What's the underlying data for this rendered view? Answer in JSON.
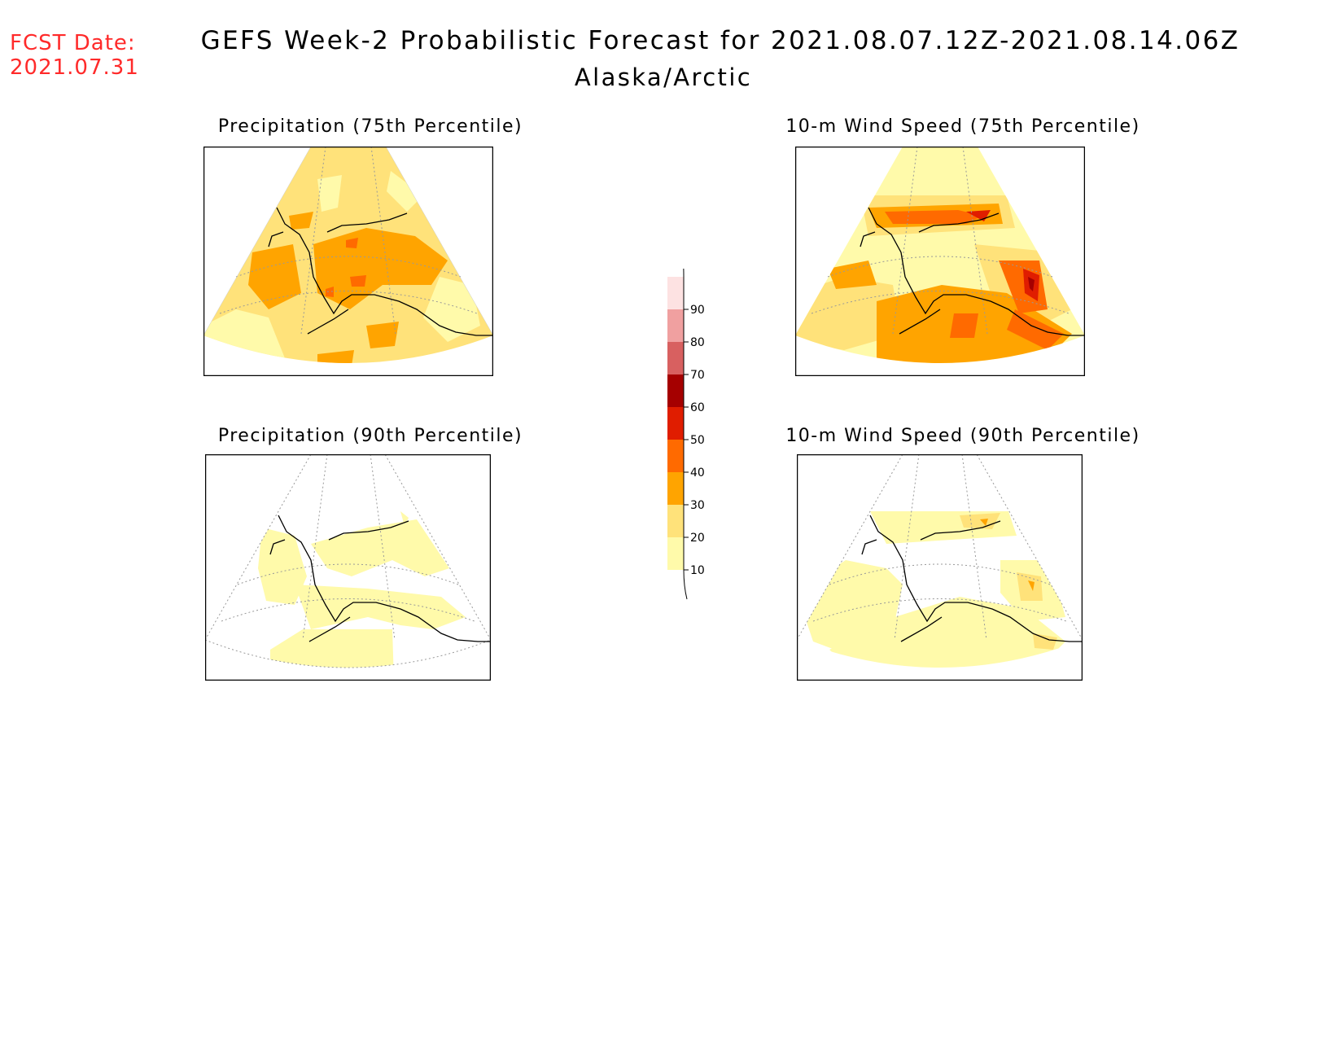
{
  "header": {
    "fcst_label": "FCST Date:",
    "fcst_date": "2021.07.31",
    "title": "GEFS Week-2 Probabilistic Forecast for 2021.08.07.12Z-2021.08.14.06Z",
    "subtitle": "Alaska/Arctic"
  },
  "panels": [
    {
      "title": "Precipitation (75th Percentile)",
      "id": "precip-75"
    },
    {
      "title": "10-m Wind Speed (75th Percentile)",
      "id": "wind-75"
    },
    {
      "title": "Precipitation (90th Percentile)",
      "id": "precip-90"
    },
    {
      "title": "10-m Wind Speed (90th Percentile)",
      "id": "wind-90"
    }
  ],
  "legend": {
    "levels": [
      "10",
      "20",
      "30",
      "40",
      "50",
      "60",
      "70",
      "80",
      "90"
    ],
    "colors": [
      "#fffaaa",
      "#ffe27a",
      "#ffa400",
      "#ff6a00",
      "#e01d00",
      "#a50000",
      "#d86060",
      "#f0a0a0",
      "#fde2e2"
    ]
  },
  "colors": {
    "c10": "#fffaaa",
    "c20": "#ffe27a",
    "c30": "#ffa400",
    "c40": "#ff6a00",
    "c50": "#e01d00",
    "c60": "#a50000",
    "fcst_text": "#ff2a2a"
  }
}
